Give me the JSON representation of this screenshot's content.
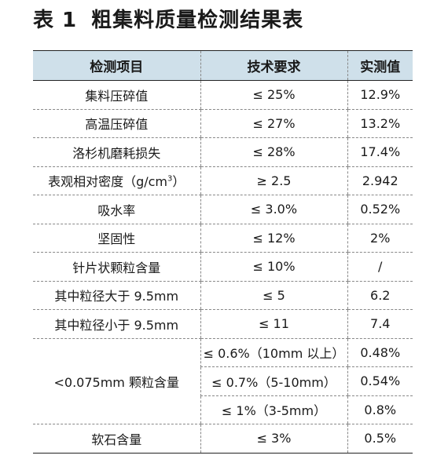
{
  "title": {
    "number": "表 1",
    "text": "粗集料质量检测结果表"
  },
  "table": {
    "headers": [
      "检测项目",
      "技术要求",
      "实测值"
    ],
    "rows": [
      {
        "item": "集料压碎值",
        "requirement": "≤ 25%",
        "measured": "12.9%"
      },
      {
        "item": "高温压碎值",
        "requirement": "≤ 27%",
        "measured": "13.2%"
      },
      {
        "item": "洛杉机磨耗损失",
        "requirement": "≤ 28%",
        "measured": "17.4%"
      },
      {
        "item": "表观相对密度（g/cm",
        "item_sup": "3",
        "item_suffix": "）",
        "requirement": "≥ 2.5",
        "measured": "2.942"
      },
      {
        "item": "吸水率",
        "requirement": "≤ 3.0%",
        "measured": "0.52%"
      },
      {
        "item": "坚固性",
        "requirement": "≤ 12%",
        "measured": "2%"
      },
      {
        "item": "针片状颗粒含量",
        "requirement": "≤ 10%",
        "measured": "/"
      },
      {
        "item": "其中粒径大于 9.5mm",
        "requirement": "≤ 5",
        "measured": "6.2"
      },
      {
        "item": "其中粒径小于 9.5mm",
        "requirement": "≤ 11",
        "measured": "7.4"
      }
    ],
    "group": {
      "item": "<0.075mm 颗粒含量",
      "subrows": [
        {
          "requirement": "≤ 0.6%（10mm 以上）",
          "measured": "0.48%"
        },
        {
          "requirement": "≤ 0.7%（5-10mm）",
          "measured": "0.54%"
        },
        {
          "requirement": "≤ 1%（3-5mm）",
          "measured": "0.8%"
        }
      ]
    },
    "last_row": {
      "item": "软石含量",
      "requirement": "≤ 3%",
      "measured": "0.5%"
    }
  }
}
